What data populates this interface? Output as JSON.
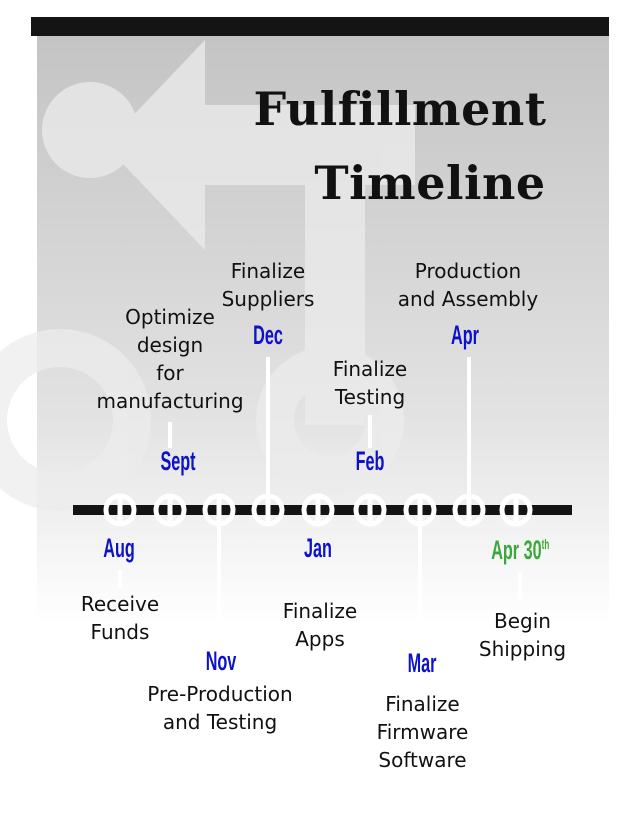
{
  "title": {
    "line1": "Fulfillment",
    "line2": "Timeline"
  },
  "colors": {
    "month": "#0d12c8",
    "final_month": "#3ca83c",
    "text": "#111111",
    "bar": "#141414"
  },
  "milestones_top": [
    {
      "id": "sept",
      "month": "Sept",
      "lines": [
        "Optimize",
        "design",
        "for",
        "manufacturing"
      ]
    },
    {
      "id": "dec",
      "month": "Dec",
      "lines": [
        "Finalize",
        "Suppliers"
      ]
    },
    {
      "id": "feb",
      "month": "Feb",
      "lines": [
        "Finalize",
        "Testing"
      ]
    },
    {
      "id": "apr",
      "month": "Apr",
      "lines": [
        "Production",
        "and Assembly"
      ]
    }
  ],
  "milestones_bottom": [
    {
      "id": "aug",
      "month": "Aug",
      "lines": [
        "Receive",
        "Funds"
      ]
    },
    {
      "id": "nov",
      "month": "Nov",
      "lines": [
        "Pre-Production",
        "and Testing"
      ]
    },
    {
      "id": "jan",
      "month": "Jan",
      "lines": [
        "Finalize",
        "Apps"
      ]
    },
    {
      "id": "mar",
      "month": "Mar",
      "lines": [
        "Finalize",
        "Firmware",
        "Software"
      ]
    },
    {
      "id": "apr30",
      "month": "Apr 30",
      "suffix": "th",
      "lines": [
        "Begin",
        "Shipping"
      ]
    }
  ]
}
